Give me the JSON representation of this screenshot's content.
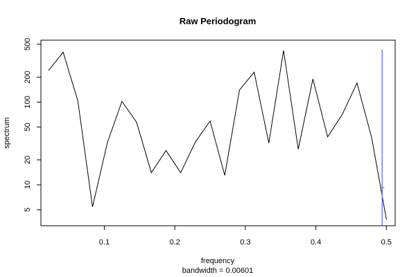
{
  "chart_data": {
    "type": "line",
    "title": "Raw Periodogram",
    "xlabel": "frequency",
    "xsublabel": "bandwidth = 0.00601",
    "ylabel": "spectrum",
    "yscale": "log",
    "xlim": [
      0.0101,
      0.5125
    ],
    "ylim": [
      3.2,
      560
    ],
    "xticks": [
      0.1,
      0.2,
      0.3,
      0.4,
      0.5
    ],
    "xtick_labels": [
      "0.1",
      "0.2",
      "0.3",
      "0.4",
      "0.5"
    ],
    "yticks": [
      5,
      10,
      20,
      50,
      100,
      200,
      500
    ],
    "ytick_labels": [
      "5",
      "10",
      "20",
      "50",
      "100",
      "200",
      "500"
    ],
    "grid": false,
    "series": [
      {
        "color": "#000000",
        "x": [
          0.0208,
          0.0417,
          0.0625,
          0.0833,
          0.1042,
          0.125,
          0.1458,
          0.1667,
          0.1875,
          0.2083,
          0.2292,
          0.25,
          0.2708,
          0.2917,
          0.3125,
          0.3333,
          0.3542,
          0.375,
          0.3958,
          0.4167,
          0.4375,
          0.4583,
          0.4792,
          0.5
        ],
        "y": [
          240,
          400,
          103,
          5.4,
          32,
          102,
          57,
          14,
          26,
          14,
          33,
          59,
          13,
          140,
          230,
          32,
          420,
          27,
          190,
          38,
          71,
          170,
          37,
          3.8
        ]
      }
    ],
    "bandwidth_marker": {
      "color": "#6666ff",
      "x": 0.494,
      "center_y": 9.2,
      "y_range": [
        3.2,
        430
      ],
      "half_width": 0.003
    }
  }
}
